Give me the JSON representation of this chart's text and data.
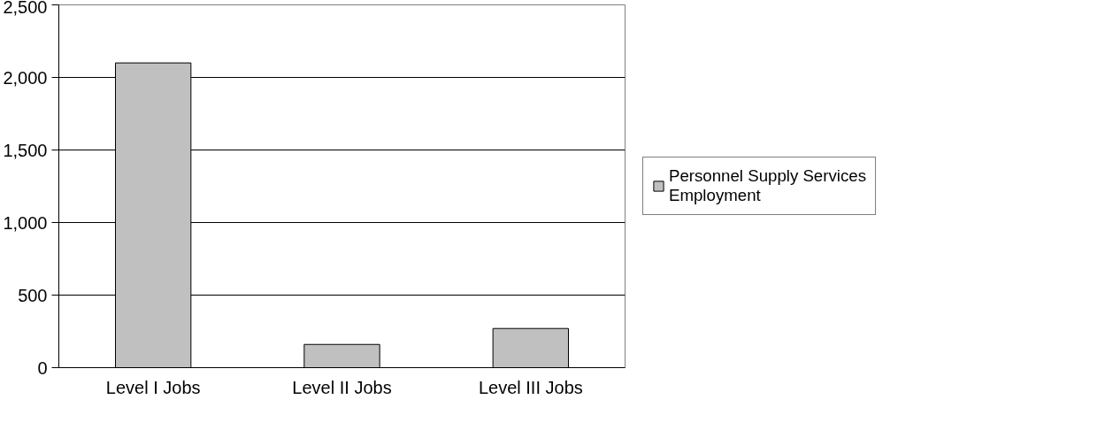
{
  "chart_data": {
    "type": "bar",
    "categories": [
      "Level I Jobs",
      "Level II Jobs",
      "Level III Jobs"
    ],
    "series": [
      {
        "name": "Personnel Supply Services Employment",
        "color": "#c0c0c0",
        "values": [
          2100,
          160,
          270
        ]
      }
    ],
    "ylim": [
      0,
      2500
    ],
    "yticks": [
      0,
      {
        "value": 500,
        "label": "500"
      },
      {
        "value": 1000,
        "label": "1,000"
      },
      {
        "value": 1500,
        "label": "1,500"
      },
      {
        "value": 2000,
        "label": "2,000"
      },
      {
        "value": 2500,
        "label": "2,500"
      }
    ],
    "grid": "y",
    "legend": "right"
  }
}
